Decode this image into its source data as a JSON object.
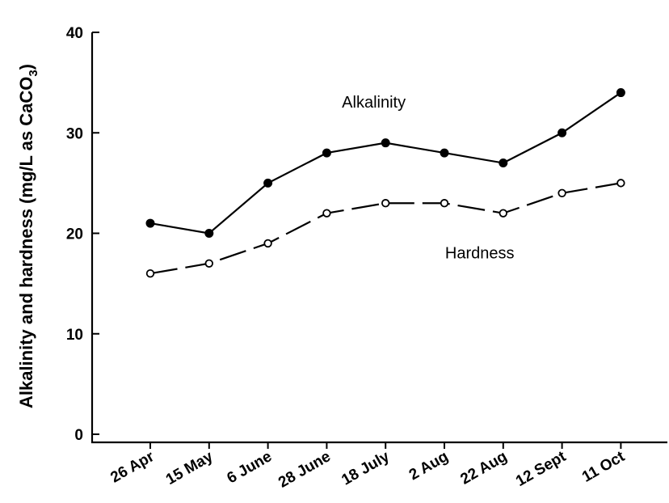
{
  "chart_data": {
    "type": "line",
    "title": "",
    "xlabel": "",
    "ylabel": "Alkalinity and hardness (mg/L as CaCO",
    "ylabel_subscript": "3",
    "ylabel_close": ")",
    "ylim": [
      0,
      40
    ],
    "yticks": [
      "0",
      "10",
      "20",
      "30",
      "40"
    ],
    "grid": false,
    "categories": [
      "26 Apr",
      "15 May",
      "6 June",
      "28 June",
      "18 July",
      "2 Aug",
      "22 Aug",
      "12 Sept",
      "11 Oct"
    ],
    "series": [
      {
        "name": "Alkalinity",
        "values": [
          21,
          20,
          25,
          28,
          29,
          28,
          27,
          30,
          34
        ],
        "line_style": "solid",
        "marker": "filled-circle",
        "color": "#000000"
      },
      {
        "name": "Hardness",
        "values": [
          16,
          17,
          19,
          22,
          23,
          23,
          22,
          24,
          25
        ],
        "line_style": "dashed",
        "marker": "open-circle",
        "color": "#000000"
      }
    ],
    "annotations": [
      {
        "text": "Alkalinity",
        "series": "Alkalinity",
        "at_category_index": 3.8,
        "at_value": 32.5
      },
      {
        "text": "Hardness",
        "series": "Hardness",
        "at_category_index": 5.6,
        "at_value": 17.5
      }
    ]
  }
}
